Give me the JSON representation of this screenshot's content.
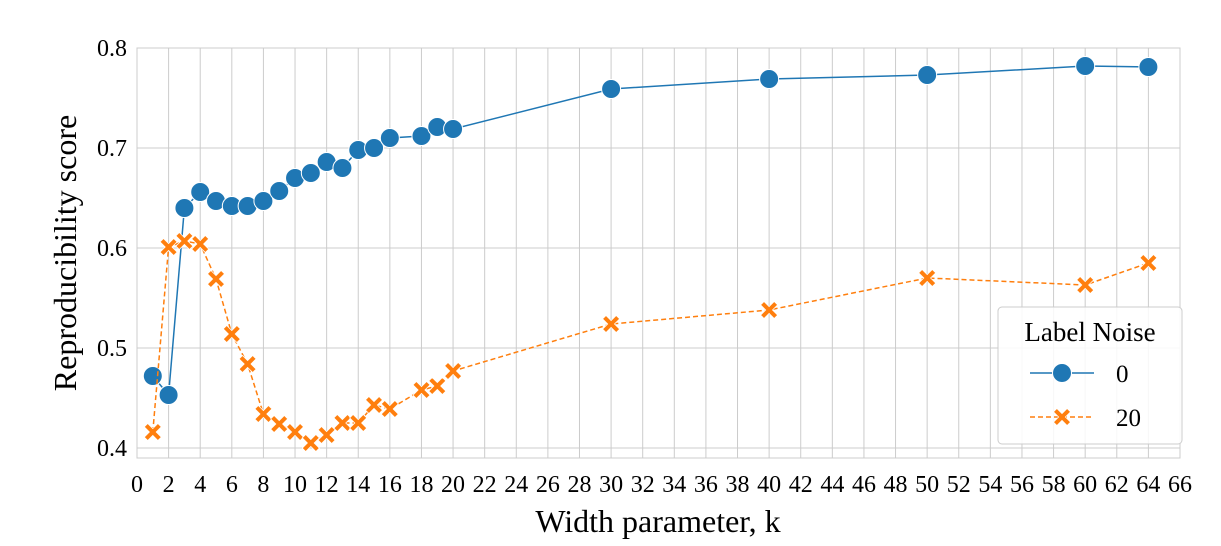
{
  "chart_data": {
    "type": "line",
    "title": "",
    "xlabel": "Width parameter, k",
    "ylabel": "Reproducibility score",
    "xlim": [
      0,
      66
    ],
    "ylim": [
      0.39,
      0.8
    ],
    "x_ticks": [
      "0",
      "2",
      "4",
      "6",
      "8",
      "10",
      "12",
      "14",
      "16",
      "18",
      "20",
      "22",
      "24",
      "26",
      "28",
      "30",
      "32",
      "34",
      "36",
      "38",
      "40",
      "42",
      "44",
      "46",
      "48",
      "50",
      "52",
      "54",
      "56",
      "58",
      "60",
      "62",
      "64",
      "66"
    ],
    "y_ticks": [
      "0.4",
      "0.5",
      "0.6",
      "0.7",
      "0.8"
    ],
    "grid": true,
    "legend": {
      "title": "Label Noise",
      "placement": "lower-right"
    },
    "series": [
      {
        "name": "0",
        "color": "#1f77b4",
        "marker": "circle",
        "line_style": "solid",
        "x": [
          1,
          2,
          3,
          4,
          5,
          6,
          7,
          8,
          9,
          10,
          11,
          12,
          13,
          14,
          15,
          16,
          18,
          19,
          20,
          30,
          40,
          50,
          60,
          64
        ],
        "values": [
          0.472,
          0.453,
          0.64,
          0.656,
          0.647,
          0.642,
          0.642,
          0.647,
          0.657,
          0.67,
          0.675,
          0.686,
          0.68,
          0.698,
          0.7,
          0.71,
          0.712,
          0.721,
          0.719,
          0.759,
          0.769,
          0.773,
          0.782,
          0.781
        ]
      },
      {
        "name": "20",
        "color": "#ff7f0e",
        "marker": "x",
        "line_style": "dashed",
        "x": [
          1,
          2,
          3,
          4,
          5,
          6,
          7,
          8,
          9,
          10,
          11,
          12,
          13,
          14,
          15,
          16,
          18,
          19,
          20,
          30,
          40,
          50,
          60,
          64
        ],
        "values": [
          0.416,
          0.601,
          0.607,
          0.604,
          0.569,
          0.514,
          0.484,
          0.434,
          0.424,
          0.416,
          0.405,
          0.413,
          0.425,
          0.425,
          0.443,
          0.439,
          0.458,
          0.462,
          0.477,
          0.524,
          0.538,
          0.57,
          0.563,
          0.585
        ]
      }
    ]
  }
}
